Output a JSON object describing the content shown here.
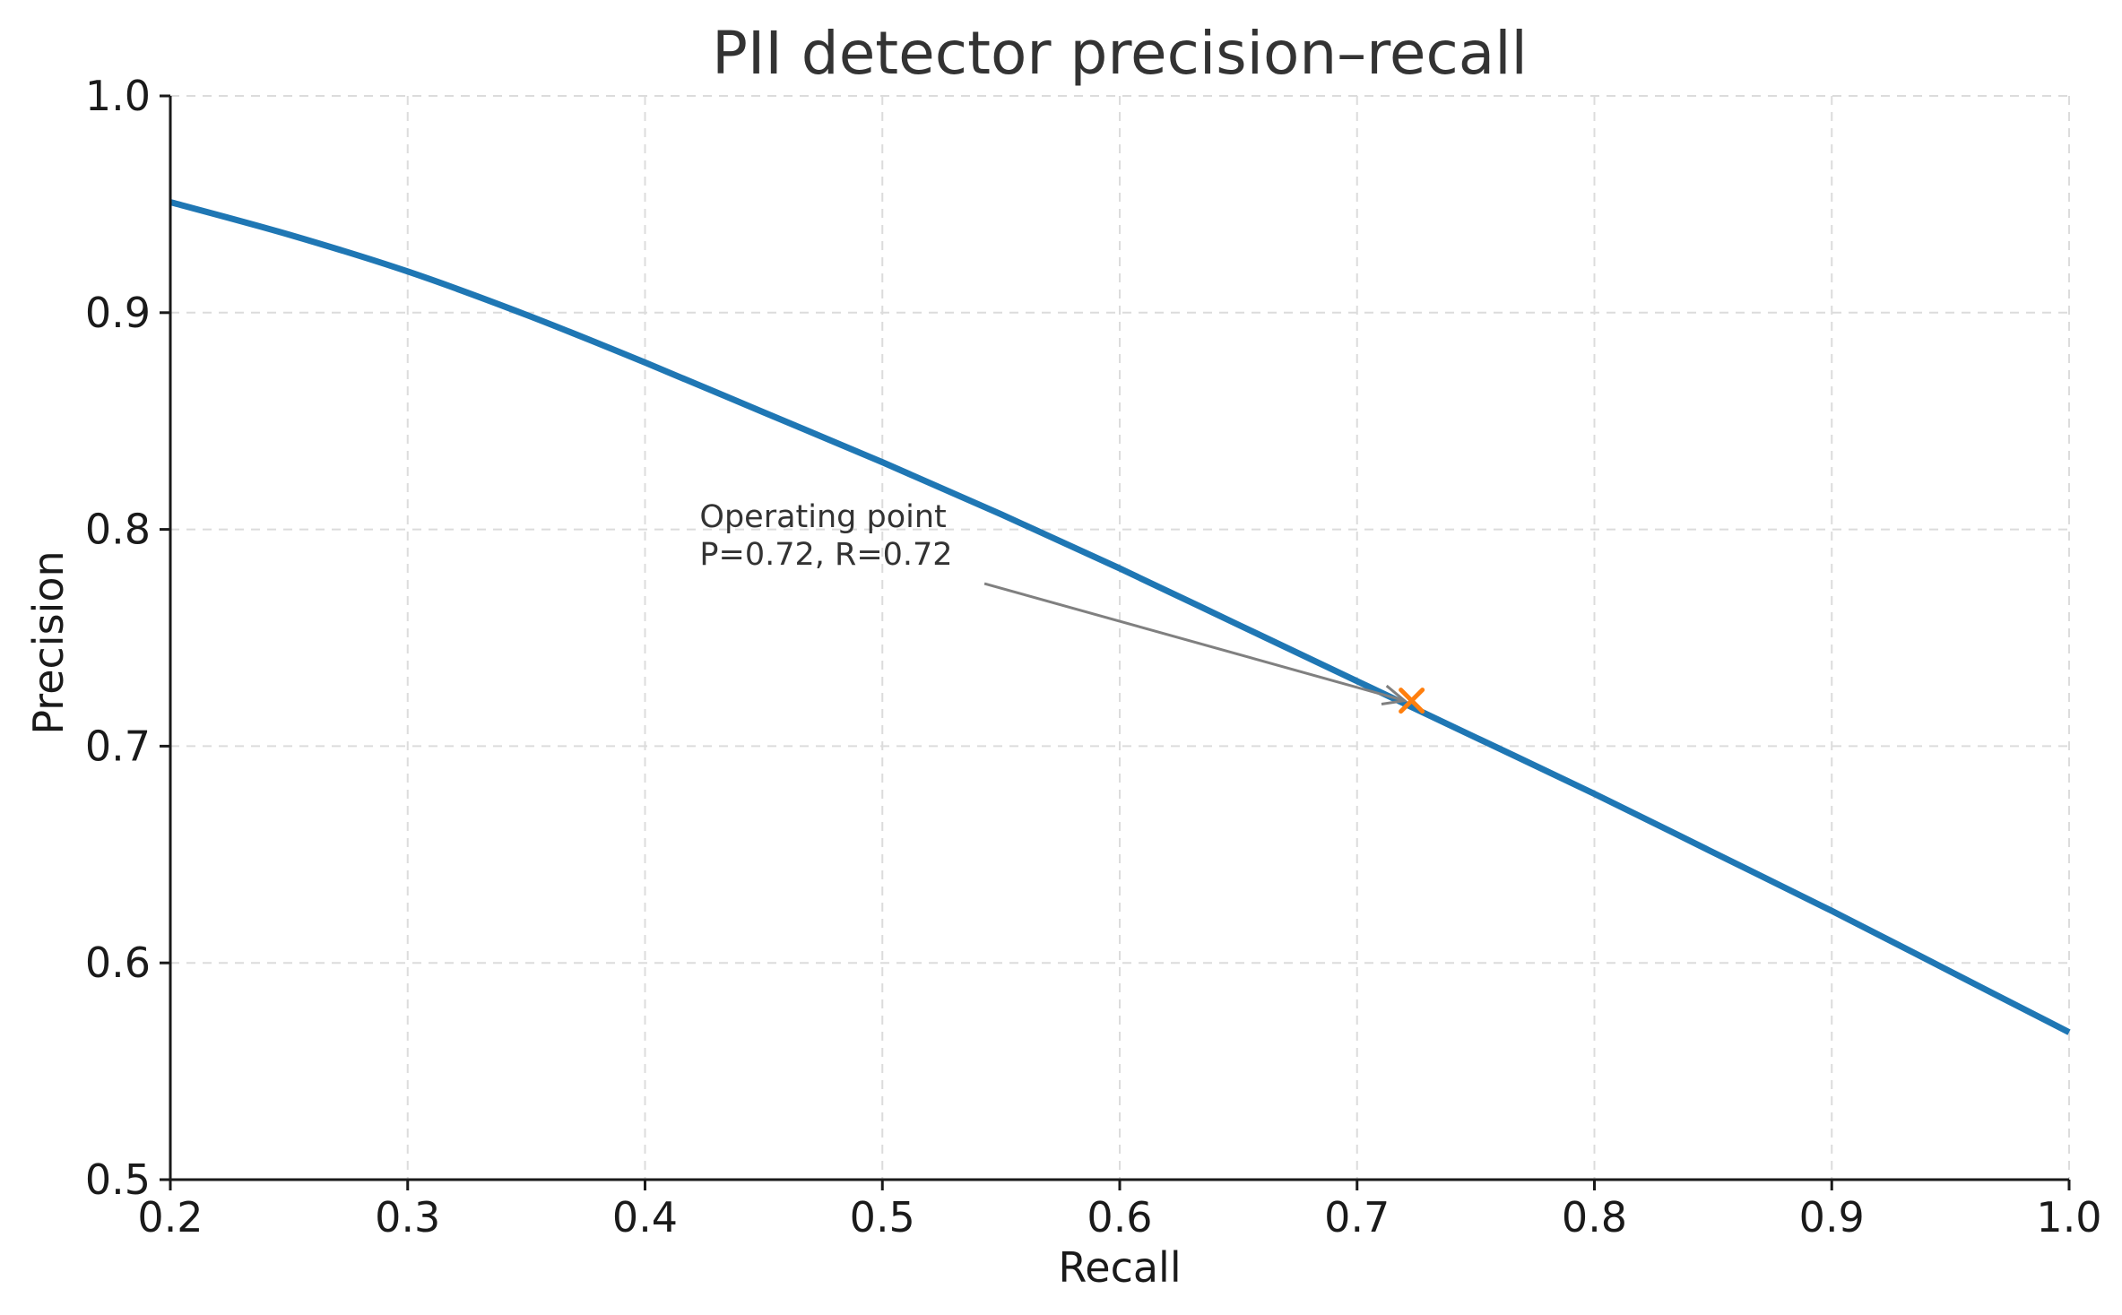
{
  "chart_data": {
    "type": "line",
    "title": "PII detector precision–recall",
    "xlabel": "Recall",
    "ylabel": "Precision",
    "xlim": [
      0.2,
      1.0
    ],
    "ylim": [
      0.5,
      1.0
    ],
    "xticks": [
      0.2,
      0.3,
      0.4,
      0.5,
      0.6,
      0.7,
      0.8,
      0.9,
      1.0
    ],
    "yticks": [
      0.5,
      0.6,
      0.7,
      0.8,
      0.9,
      1.0
    ],
    "xtick_labels": [
      "0.2",
      "0.3",
      "0.4",
      "0.5",
      "0.6",
      "0.7",
      "0.8",
      "0.9",
      "1.0"
    ],
    "ytick_labels": [
      "0.5",
      "0.6",
      "0.7",
      "0.8",
      "0.9",
      "1.0"
    ],
    "grid": true,
    "series": [
      {
        "color": "#1f77b4",
        "x": [
          0.2,
          0.25,
          0.3,
          0.35,
          0.4,
          0.45,
          0.5,
          0.55,
          0.6,
          0.65,
          0.7,
          0.75,
          0.8,
          0.85,
          0.9,
          0.95,
          1.0
        ],
        "y": [
          0.951,
          0.936,
          0.919,
          0.899,
          0.877,
          0.854,
          0.831,
          0.807,
          0.782,
          0.756,
          0.73,
          0.704,
          0.678,
          0.651,
          0.624,
          0.596,
          0.568
        ]
      }
    ],
    "marker": {
      "x": 0.723,
      "y": 0.721,
      "symbol": "x",
      "color": "#ff7f0e"
    },
    "annotation": {
      "lines": [
        "Operating point",
        "P=0.72, R=0.72"
      ],
      "text_x": 0.423,
      "text_y": 0.792,
      "arrow_from": [
        0.543,
        0.775
      ],
      "arrow_to": [
        0.72,
        0.721
      ],
      "arrow_color": "#808080"
    }
  }
}
